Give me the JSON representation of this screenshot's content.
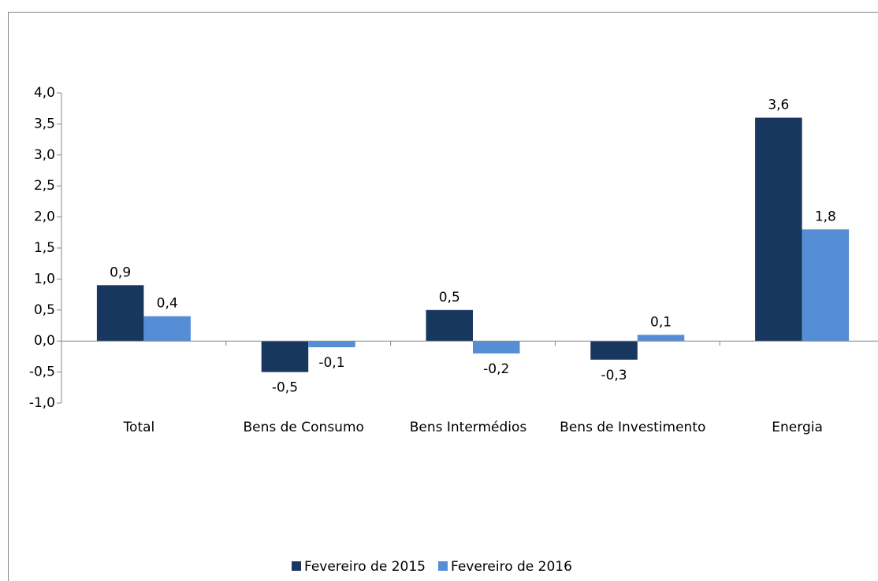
{
  "chart_data": {
    "type": "bar",
    "categories": [
      "Total",
      "Bens de Consumo",
      "Bens Intermédios",
      "Bens de Investimento",
      "Energia"
    ],
    "series": [
      {
        "name": "Fevereiro de 2015",
        "color": "#17375e",
        "values": [
          0.9,
          -0.5,
          0.5,
          -0.3,
          3.6
        ],
        "value_labels": [
          "0,9",
          "-0,5",
          "0,5",
          "-0,3",
          "3,6"
        ]
      },
      {
        "name": "Fevereiro de 2016",
        "color": "#558ed5",
        "values": [
          0.4,
          -0.1,
          -0.2,
          0.1,
          1.8
        ],
        "value_labels": [
          "0,4",
          "-0,1",
          "-0,2",
          "0,1",
          "1,8"
        ]
      }
    ],
    "ylim": [
      -1.0,
      4.0
    ],
    "yticks": [
      {
        "value": -1.0,
        "label": "-1,0"
      },
      {
        "value": -0.5,
        "label": "-0,5"
      },
      {
        "value": 0.0,
        "label": "0,0"
      },
      {
        "value": 0.5,
        "label": "0,5"
      },
      {
        "value": 1.0,
        "label": "1,0"
      },
      {
        "value": 1.5,
        "label": "1,5"
      },
      {
        "value": 2.0,
        "label": "2,0"
      },
      {
        "value": 2.5,
        "label": "2,5"
      },
      {
        "value": 3.0,
        "label": "3,0"
      },
      {
        "value": 3.5,
        "label": "3,5"
      },
      {
        "value": 4.0,
        "label": "4,0"
      }
    ],
    "grid": false,
    "legend": "bottom"
  }
}
